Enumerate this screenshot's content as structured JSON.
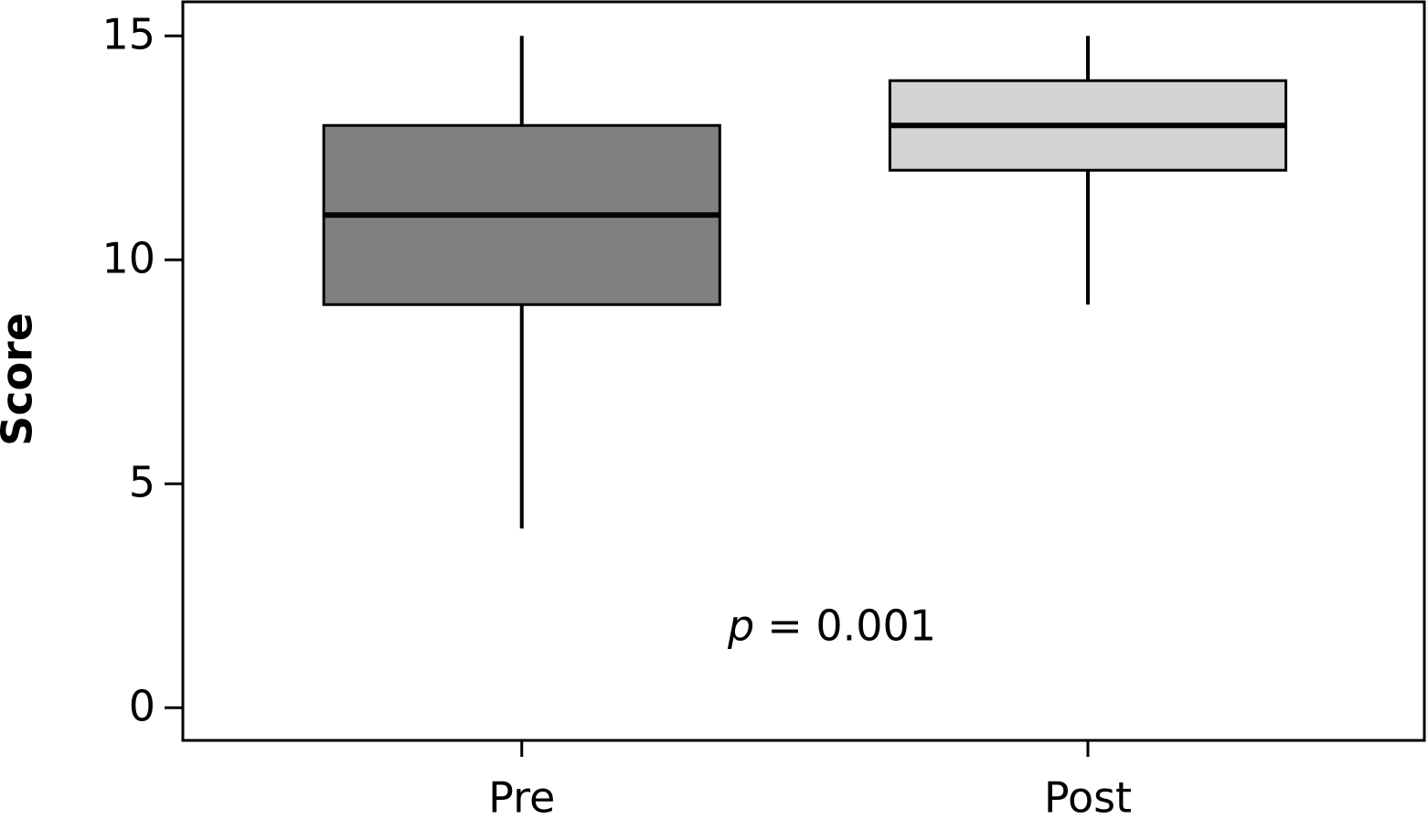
{
  "chart_data": {
    "type": "box",
    "y_label": "Score",
    "categories": [
      "Pre",
      "Post"
    ],
    "boxes": [
      {
        "color": "#808080",
        "whislo": 4,
        "q1": 9,
        "median": 11,
        "q3": 13,
        "whishi": 15
      },
      {
        "color": "#d3d3d3",
        "whislo": 9,
        "q1": 12,
        "median": 13,
        "q3": 14,
        "whishi": 15
      }
    ],
    "ylim": [
      -0.73,
      15.76
    ],
    "yticks": [
      0,
      5,
      10,
      15
    ],
    "annotation": {
      "variable": "p",
      "text": "= 0.001"
    }
  }
}
